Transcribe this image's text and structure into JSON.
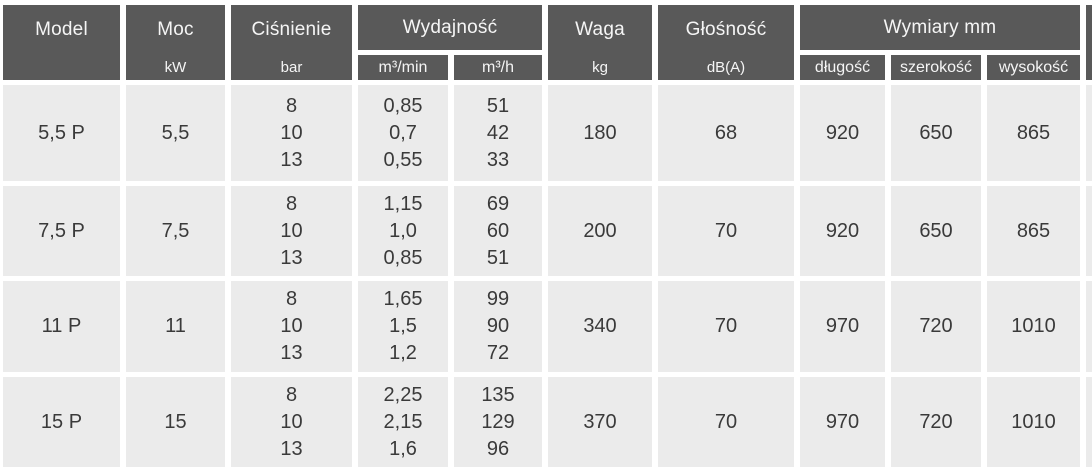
{
  "colors": {
    "header_bg": "#595959",
    "header_text": "#f5f5f5",
    "cell_bg": "#ebebeb",
    "cell_text": "#3a3a3a",
    "page_bg": "#ffffff"
  },
  "table": {
    "headers": {
      "model": {
        "label": "Model",
        "unit": ""
      },
      "moc": {
        "label": "Moc",
        "unit": "kW"
      },
      "cisnienie": {
        "label": "Ciśnienie",
        "unit": "bar"
      },
      "wydajnosc": {
        "label": "Wydajność",
        "subs": [
          "m³/min",
          "m³/h"
        ]
      },
      "waga": {
        "label": "Waga",
        "unit": "kg"
      },
      "glosnosc": {
        "label": "Głośność",
        "unit": "dB(A)"
      },
      "wymiary": {
        "label": "Wymiary mm",
        "subs": [
          "długość",
          "szerokość",
          "wysokość"
        ]
      }
    },
    "column_keys": [
      "model",
      "moc",
      "cisnienie",
      "wydajnosc-m3min",
      "wydajnosc-m3h",
      "waga",
      "glosnosc",
      "dlugosc",
      "szerokosc",
      "wysokosc"
    ],
    "rows": [
      {
        "cells": [
          "5,5 P",
          "5,5",
          [
            "8",
            "10",
            "13"
          ],
          [
            "0,85",
            "0,7",
            "0,55"
          ],
          [
            "51",
            "42",
            "33"
          ],
          "180",
          "68",
          "920",
          "650",
          "865"
        ]
      },
      {
        "cells": [
          "7,5 P",
          "7,5",
          [
            "8",
            "10",
            "13"
          ],
          [
            "1,15",
            "1,0",
            "0,85"
          ],
          [
            "69",
            "60",
            "51"
          ],
          "200",
          "70",
          "920",
          "650",
          "865"
        ]
      },
      {
        "cells": [
          "11 P",
          "11",
          [
            "8",
            "10",
            "13"
          ],
          [
            "1,65",
            "1,5",
            "1,2"
          ],
          [
            "99",
            "90",
            "72"
          ],
          "340",
          "70",
          "970",
          "720",
          "1010"
        ]
      },
      {
        "cells": [
          "15 P",
          "15",
          [
            "8",
            "10",
            "13"
          ],
          [
            "2,25",
            "2,15",
            "1,6"
          ],
          [
            "135",
            "129",
            "96"
          ],
          "370",
          "70",
          "970",
          "720",
          "1010"
        ]
      }
    ]
  }
}
